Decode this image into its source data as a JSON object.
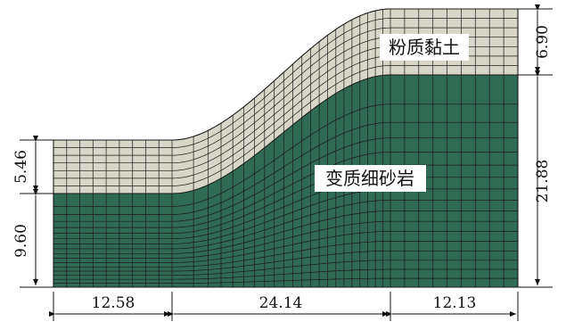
{
  "materials": {
    "top_layer": {
      "label": "粉质黏土",
      "color": "#d7d6c8"
    },
    "bottom_layer": {
      "label": "变质细砂岩",
      "color": "#2f6a55"
    }
  },
  "dimensions": {
    "bottom": [
      "12.58",
      "24.14",
      "12.13"
    ],
    "left": [
      "5.46",
      "9.60"
    ],
    "right": [
      "6.90",
      "21.88"
    ]
  },
  "colors": {
    "mesh_line": "#1a1a1a",
    "dim_line": "#111111"
  }
}
